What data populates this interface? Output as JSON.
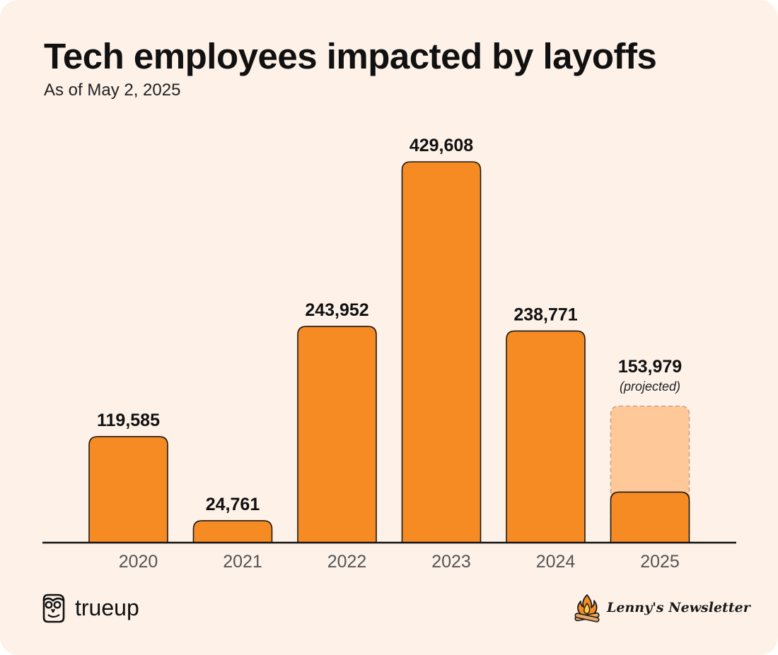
{
  "title": "Tech employees impacted by layoffs",
  "subtitle": "As of May 2, 2025",
  "chart_data": {
    "type": "bar",
    "categories": [
      "2020",
      "2021",
      "2022",
      "2023",
      "2024",
      "2025"
    ],
    "values": [
      119585,
      24761,
      243952,
      429608,
      238771,
      153979
    ],
    "value_labels": [
      "119,585",
      "24,761",
      "243,952",
      "429,608",
      "238,771",
      "153,979"
    ],
    "projected": {
      "category": "2025",
      "actual_to_date": 57000,
      "note": "(projected)"
    },
    "title": "Tech employees impacted by layoffs",
    "xlabel": "",
    "ylabel": "",
    "ylim": [
      0,
      430000
    ],
    "grid": false,
    "legend": "none",
    "colors": {
      "bar": "#F68B23",
      "projected_bar": "#FFC899",
      "outline": "#1a1a1a",
      "background": "#FDF1E8"
    }
  },
  "brands": {
    "left": {
      "label": "trueup",
      "icon": "owl-icon"
    },
    "right": {
      "label": "Lenny's Newsletter",
      "icon": "campfire-icon"
    }
  }
}
